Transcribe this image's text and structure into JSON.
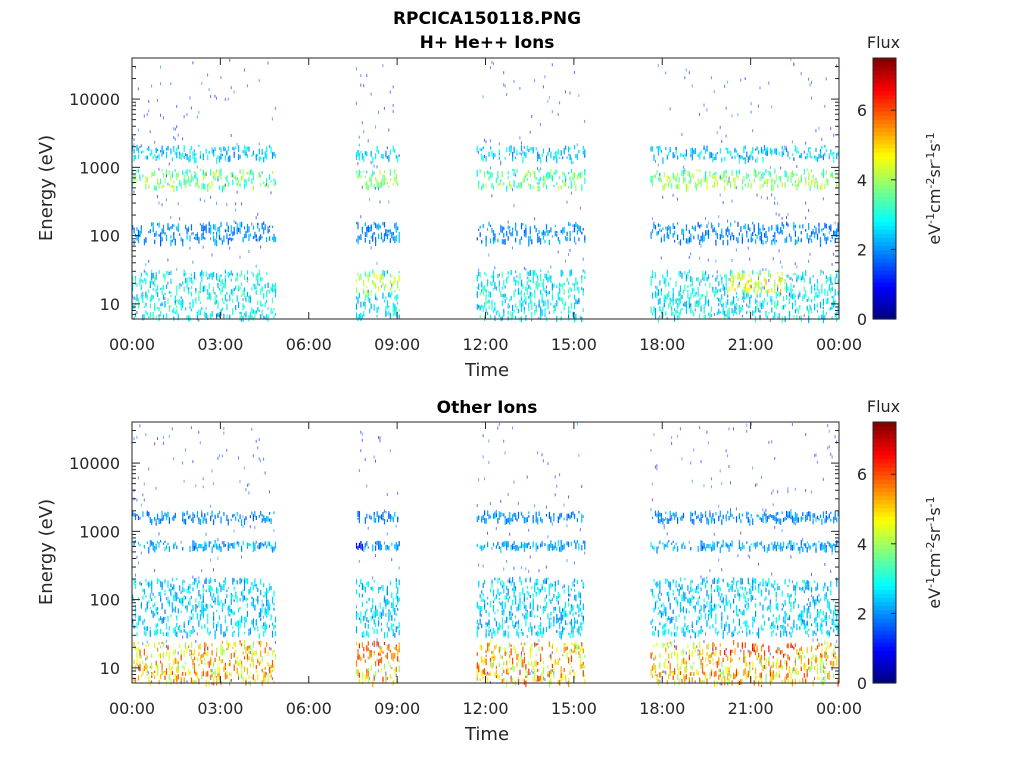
{
  "figure_title": "RPCICA150118.PNG",
  "colormap": [
    "#00007f",
    "#0000ff",
    "#007fff",
    "#00ffff",
    "#7fff7f",
    "#ffff00",
    "#ff7f00",
    "#ff0000",
    "#7f0000"
  ],
  "chart_data": [
    {
      "type": "heatmap",
      "title": "H+ He++ Ions",
      "xlabel": "Time",
      "ylabel": "Energy (eV)",
      "x_ticks": [
        "00:00",
        "03:00",
        "06:00",
        "09:00",
        "12:00",
        "15:00",
        "18:00",
        "21:00",
        "00:00"
      ],
      "x_range_hours": [
        0,
        24
      ],
      "y_scale": "log",
      "y_ticks": [
        "10",
        "100",
        "1000",
        "10000"
      ],
      "y_range": [
        6,
        40000
      ],
      "colorbar": {
        "title": "Flux",
        "label": "eV-1cm-2sr-1s-1",
        "range": [
          0,
          7.5
        ],
        "ticks": [
          "0",
          "2",
          "4",
          "6"
        ]
      },
      "data_intervals_hours": [
        [
          0,
          4.85
        ],
        [
          7.6,
          9.1
        ],
        [
          11.7,
          15.4
        ],
        [
          17.6,
          24
        ]
      ],
      "bands": [
        {
          "e_lo": 6,
          "e_hi": 30,
          "flux": 2.8
        },
        {
          "e_lo": 500,
          "e_hi": 900,
          "flux": 3.6
        },
        {
          "e_lo": 1300,
          "e_hi": 2000,
          "flux": 2.5
        },
        {
          "e_lo": 80,
          "e_hi": 150,
          "flux": 2.0
        }
      ],
      "hot_spots": [
        {
          "t0": 7.6,
          "t1": 9.1,
          "e_lo": 15,
          "e_hi": 28,
          "flux": 4.2
        },
        {
          "t0": 20.2,
          "t1": 22.2,
          "e_lo": 15,
          "e_hi": 28,
          "flux": 4.5
        },
        {
          "t0": 18.0,
          "t1": 24.0,
          "e_lo": 480,
          "e_hi": 760,
          "flux": 3.9
        },
        {
          "t0": 7.6,
          "t1": 9.0,
          "e_lo": 500,
          "e_hi": 800,
          "flux": 4.0
        }
      ]
    },
    {
      "type": "heatmap",
      "title": "Other Ions",
      "xlabel": "Time",
      "ylabel": "Energy (eV)",
      "x_ticks": [
        "00:00",
        "03:00",
        "06:00",
        "09:00",
        "12:00",
        "15:00",
        "18:00",
        "21:00",
        "00:00"
      ],
      "x_range_hours": [
        0,
        24
      ],
      "y_scale": "log",
      "y_ticks": [
        "10",
        "100",
        "1000",
        "10000"
      ],
      "y_range": [
        6,
        40000
      ],
      "colorbar": {
        "title": "Flux",
        "label": "eV-1cm-2sr-1s-1",
        "range": [
          0,
          7.5
        ],
        "ticks": [
          "0",
          "2",
          "4",
          "6"
        ]
      },
      "data_intervals_hours": [
        [
          0,
          4.85
        ],
        [
          7.6,
          9.1
        ],
        [
          11.7,
          15.4
        ],
        [
          17.6,
          24
        ]
      ],
      "bands": [
        {
          "e_lo": 6,
          "e_hi": 24,
          "flux": 5.0
        },
        {
          "e_lo": 30,
          "e_hi": 200,
          "flux": 2.5
        },
        {
          "e_lo": 550,
          "e_hi": 700,
          "flux": 2.2
        },
        {
          "e_lo": 1400,
          "e_hi": 1900,
          "flux": 2.0
        }
      ],
      "hot_spots": [
        {
          "t0": 7.6,
          "t1": 9.1,
          "e_lo": 12,
          "e_hi": 28,
          "flux": 5.8
        },
        {
          "t0": 20.0,
          "t1": 22.5,
          "e_lo": 14,
          "e_hi": 26,
          "flux": 6.0
        },
        {
          "t0": 7.6,
          "t1": 7.8,
          "e_lo": 500,
          "e_hi": 900,
          "flux": 1.0
        }
      ]
    }
  ]
}
